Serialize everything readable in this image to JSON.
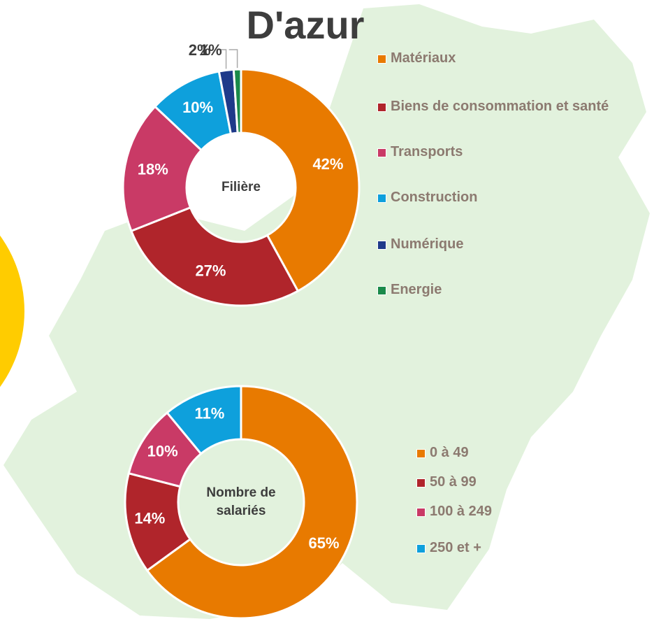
{
  "title": "D'azur",
  "chart_data": [
    {
      "type": "pie",
      "center_label": [
        "Filière"
      ],
      "categories": [
        "Matériaux",
        "Biens de consommation et santé",
        "Transports",
        "Construction",
        "Numérique",
        "Energie"
      ],
      "values": [
        42,
        27,
        18,
        10,
        2,
        1
      ],
      "value_labels": [
        "42%",
        "27%",
        "18%",
        "10%",
        "2%",
        "1%"
      ],
      "colors": [
        "#e87a00",
        "#b0252b",
        "#c93a66",
        "#0ea0dc",
        "#1f3a8a",
        "#1a8a4a"
      ]
    },
    {
      "type": "pie",
      "center_label": [
        "Nombre de",
        "salariés"
      ],
      "categories": [
        "0 à 49",
        "50 à 99",
        "100 à 249",
        "250 et +"
      ],
      "values": [
        65,
        14,
        10,
        11
      ],
      "value_labels": [
        "65%",
        "14%",
        "10%",
        "11%"
      ],
      "colors": [
        "#e87a00",
        "#b0252b",
        "#c93a66",
        "#0ea0dc"
      ]
    }
  ]
}
